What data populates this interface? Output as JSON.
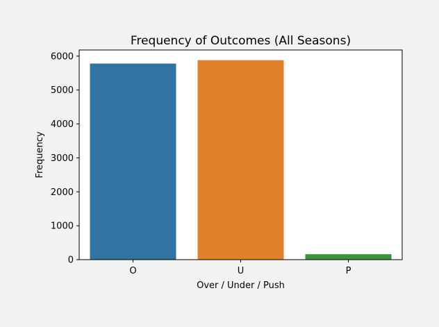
{
  "colors": {
    "figure_background": "#f2f2f2",
    "plot_background": "#ffffff",
    "axis": "#000000"
  },
  "chart_data": {
    "type": "bar",
    "title": "Frequency of Outcomes (All Seasons)",
    "xlabel": "Over / Under / Push",
    "ylabel": "Frequency",
    "categories": [
      "O",
      "U",
      "P"
    ],
    "values": [
      5780,
      5880,
      160
    ],
    "bar_colors": [
      "#3274a1",
      "#e1812c",
      "#3a923a"
    ],
    "ylim": [
      0,
      6180
    ],
    "yticks": [
      0,
      1000,
      2000,
      3000,
      4000,
      5000,
      6000
    ],
    "grid": false,
    "legend": "none"
  }
}
